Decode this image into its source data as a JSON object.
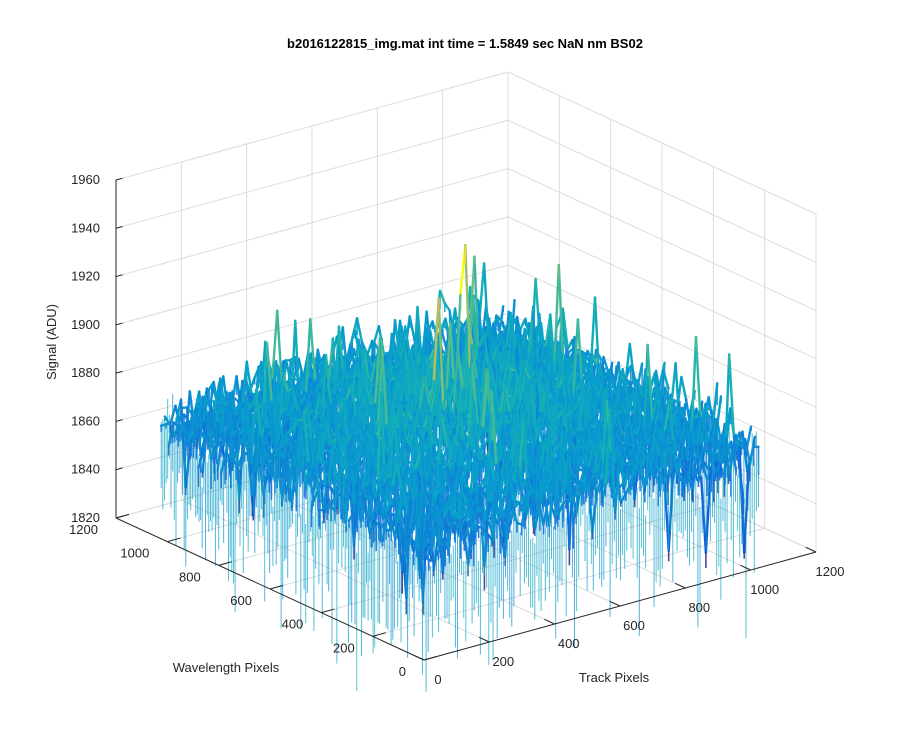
{
  "chart_data": {
    "type": "surface",
    "title": "b2016122815_img.mat int time = 1.5849 sec  NaN nm BS02",
    "xlabel": "Track Pixels",
    "ylabel": "Wavelength Pixels",
    "zlabel": "Signal (ADU)",
    "xlim": [
      0,
      1200
    ],
    "ylim": [
      0,
      1200
    ],
    "zlim": [
      1820,
      1960
    ],
    "x_ticks": [
      "0",
      "200",
      "400",
      "600",
      "800",
      "1000",
      "1200"
    ],
    "y_ticks": [
      "0",
      "200",
      "400",
      "600",
      "800",
      "1000",
      "1200"
    ],
    "z_ticks": [
      "1820",
      "1840",
      "1860",
      "1880",
      "1900",
      "1920",
      "1940",
      "1960"
    ],
    "grid": true,
    "colormap": "parula",
    "data_extent": {
      "x": [
        0,
        1024
      ],
      "y": [
        0,
        1024
      ]
    },
    "signal_mean": 1872,
    "signal_noise_range": [
      1840,
      1915
    ],
    "colors": {
      "low": "#0072bd",
      "mid": "#21b3a3",
      "high": "#e6cf3c",
      "grid": "#dcdcdc",
      "axis": "#262626"
    }
  }
}
